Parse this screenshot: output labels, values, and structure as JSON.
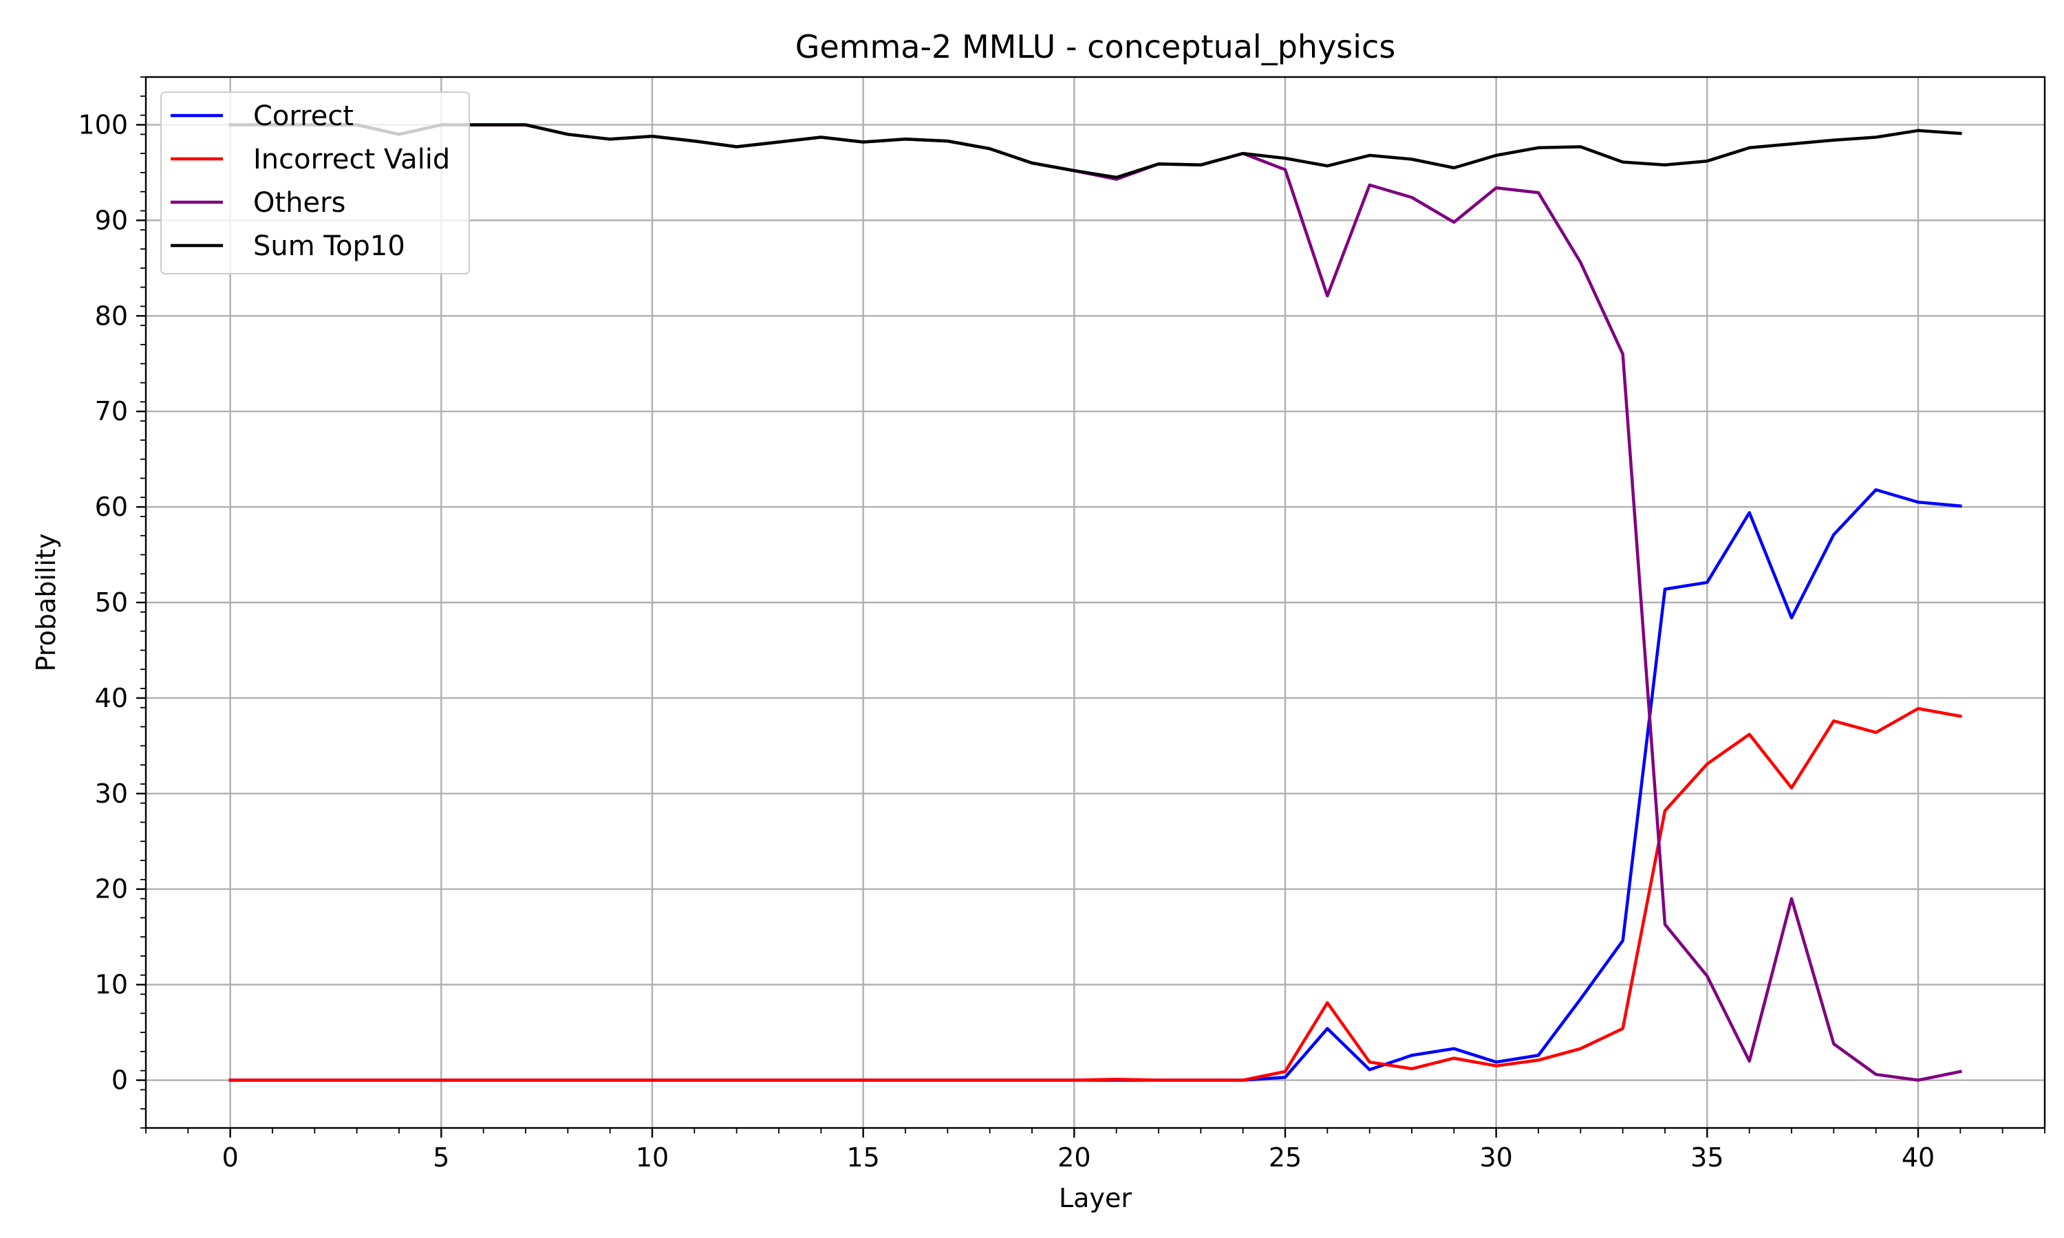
{
  "chart_data": {
    "type": "line",
    "title": "Gemma-2 MMLU - conceptual_physics",
    "xlabel": "Layer",
    "ylabel": "Probability",
    "xlim": [
      -2,
      43
    ],
    "ylim": [
      -5,
      105
    ],
    "xticks": [
      0,
      5,
      10,
      15,
      20,
      25,
      30,
      35,
      40
    ],
    "yticks": [
      0,
      10,
      20,
      30,
      40,
      50,
      60,
      70,
      80,
      90,
      100
    ],
    "grid": true,
    "legend_position": "upper-left",
    "x": [
      0,
      1,
      2,
      3,
      4,
      5,
      6,
      7,
      8,
      9,
      10,
      11,
      12,
      13,
      14,
      15,
      16,
      17,
      18,
      19,
      20,
      21,
      22,
      23,
      24,
      25,
      26,
      27,
      28,
      29,
      30,
      31,
      32,
      33,
      34,
      35,
      36,
      37,
      38,
      39,
      40,
      41
    ],
    "series": [
      {
        "name": "Correct",
        "color": "#0000ff",
        "values": [
          0,
          0,
          0,
          0,
          0,
          0,
          0,
          0,
          0,
          0,
          0,
          0,
          0,
          0,
          0,
          0,
          0,
          0,
          0,
          0,
          0,
          0,
          0,
          0,
          0,
          0.3,
          5.4,
          1.1,
          2.6,
          3.3,
          1.9,
          2.6,
          8.5,
          14.6,
          51.4,
          52.1,
          59.4,
          48.4,
          57.1,
          61.8,
          60.5,
          60.1
        ]
      },
      {
        "name": "Incorrect Valid",
        "color": "#ff0000",
        "values": [
          0,
          0,
          0,
          0,
          0,
          0,
          0,
          0,
          0,
          0,
          0,
          0,
          0,
          0,
          0,
          0,
          0,
          0,
          0,
          0,
          0,
          0.1,
          0,
          0,
          0,
          0.9,
          8.1,
          1.9,
          1.2,
          2.3,
          1.5,
          2.1,
          3.3,
          5.4,
          28.2,
          33.1,
          36.2,
          30.6,
          37.6,
          36.4,
          38.9,
          38.1
        ]
      },
      {
        "name": "Others",
        "color": "#800080",
        "values": [
          100,
          100,
          100,
          100,
          99,
          100,
          100,
          100,
          99,
          98.5,
          98.8,
          98.3,
          97.7,
          98.2,
          98.7,
          98.2,
          98.5,
          98.3,
          97.5,
          96,
          95.2,
          94.3,
          95.9,
          95.8,
          97,
          95.3,
          82.1,
          93.7,
          92.4,
          89.8,
          93.4,
          92.9,
          85.6,
          76,
          16.3,
          10.9,
          2,
          19,
          3.8,
          0.6,
          0,
          0.9
        ]
      },
      {
        "name": "Sum Top10",
        "color": "#000000",
        "values": [
          100,
          100,
          100,
          100,
          99,
          100,
          100,
          100,
          99,
          98.5,
          98.8,
          98.3,
          97.7,
          98.2,
          98.7,
          98.2,
          98.5,
          98.3,
          97.5,
          96,
          95.2,
          94.5,
          95.9,
          95.8,
          97,
          96.5,
          95.7,
          96.8,
          96.4,
          95.5,
          96.8,
          97.6,
          97.7,
          96.1,
          95.8,
          96.2,
          97.6,
          98,
          98.4,
          98.7,
          99.4,
          99.1
        ]
      }
    ]
  }
}
